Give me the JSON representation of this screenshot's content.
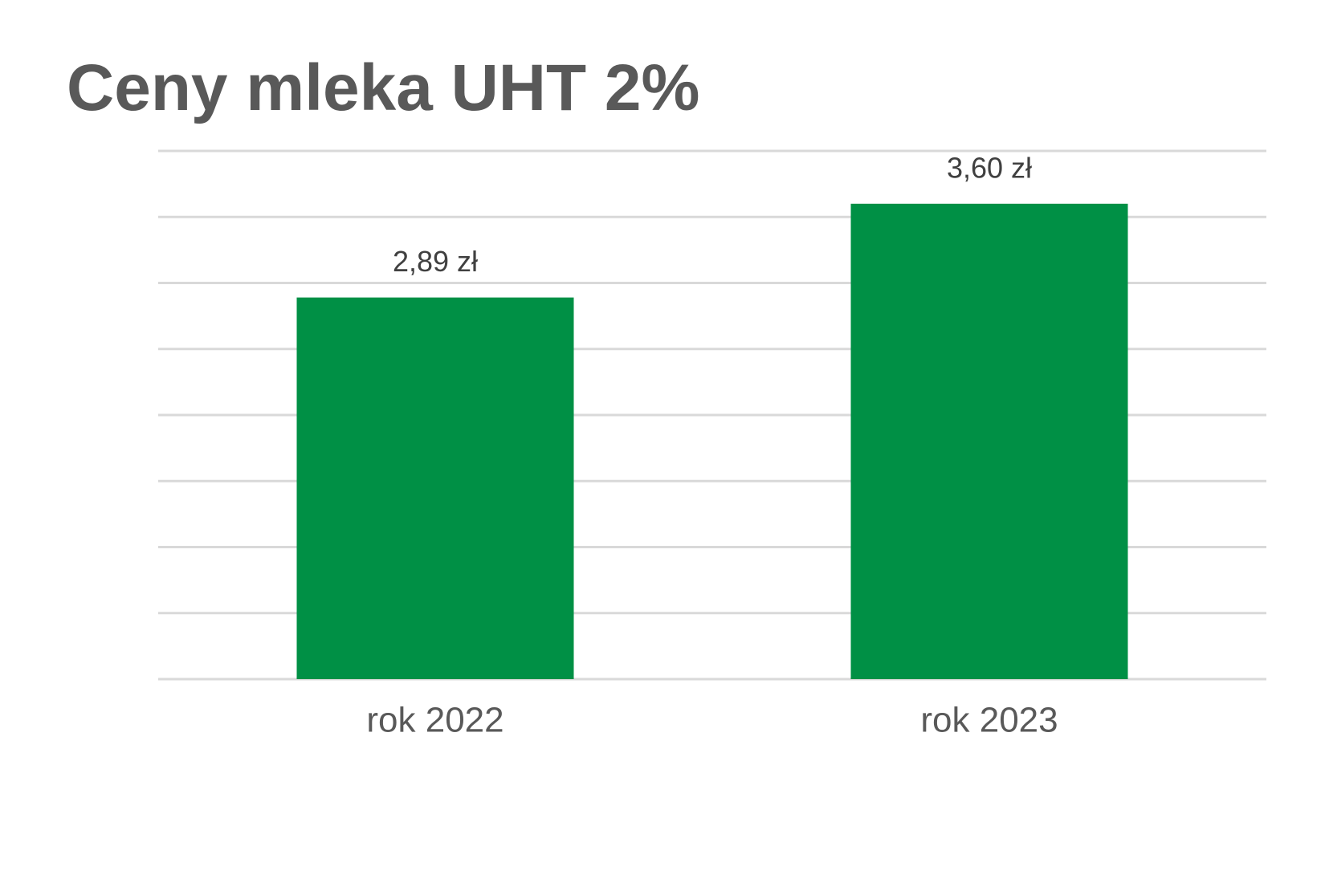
{
  "chart_data": {
    "type": "bar",
    "title": "Ceny mleka UHT 2%",
    "categories": [
      "rok 2022",
      "rok 2023"
    ],
    "values": [
      2.89,
      3.6
    ],
    "value_labels": [
      "2,89 zł",
      "3,60 zł"
    ],
    "color": "#009045",
    "ylim": [
      0,
      4
    ],
    "yticks": [
      0,
      0.5,
      1,
      1.5,
      2,
      2.5,
      3,
      3.5,
      4
    ],
    "grid": true
  }
}
